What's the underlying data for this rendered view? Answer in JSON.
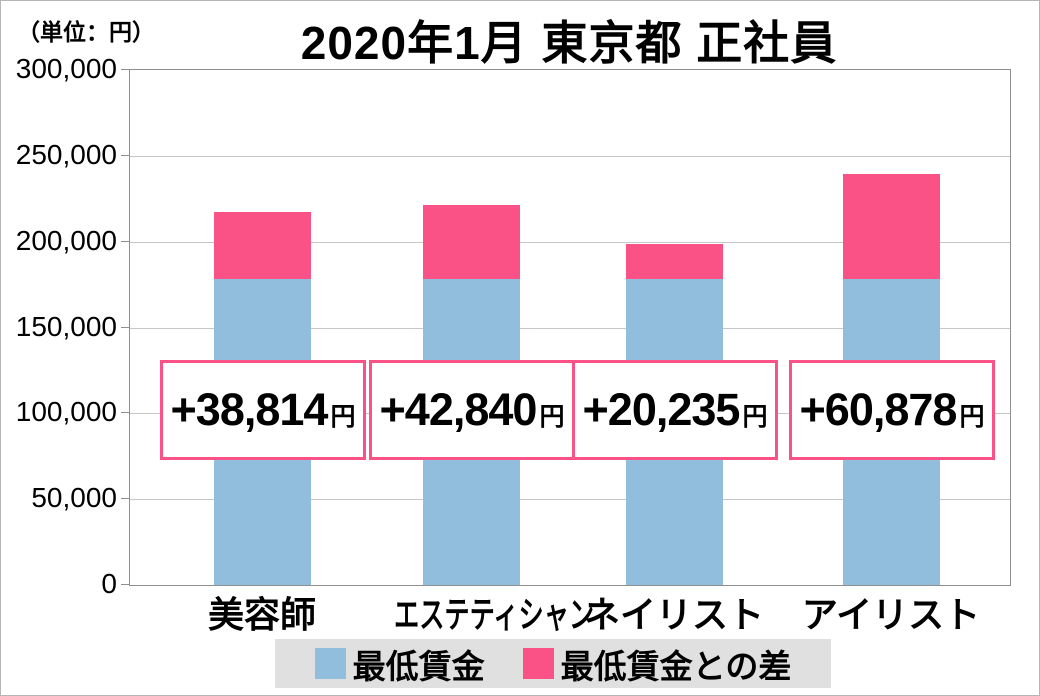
{
  "chart_data": {
    "type": "bar",
    "stacked": true,
    "title": "2020年1月 東京都 正社員",
    "unit_label": "（単位：円）",
    "categories": [
      "美容師",
      "エステティシャン",
      "ネイリスト",
      "アイリスト"
    ],
    "series": [
      {
        "name": "最低賃金",
        "color": "#92bedd",
        "values": [
          178288,
          178288,
          178288,
          178288
        ]
      },
      {
        "name": "最低賃金との差",
        "color": "#fa5287",
        "values": [
          38814,
          42840,
          20235,
          60878
        ]
      }
    ],
    "totals": [
      217102,
      221128,
      198523,
      239166
    ],
    "bar_labels": [
      "+38,814",
      "+42,840",
      "+20,235",
      "+60,878"
    ],
    "bar_label_unit": "円",
    "ylim": [
      0,
      300000
    ],
    "ytick_interval": 50000,
    "yticks": [
      "300,000",
      "250,000",
      "200,000",
      "150,000",
      "100,000",
      "50,000",
      "0"
    ],
    "grid": true,
    "legend_position": "bottom",
    "legend_bg": "#e0e0e0",
    "plot_border_color": "#8f8f8f",
    "grid_color": "#c7c7c7"
  }
}
